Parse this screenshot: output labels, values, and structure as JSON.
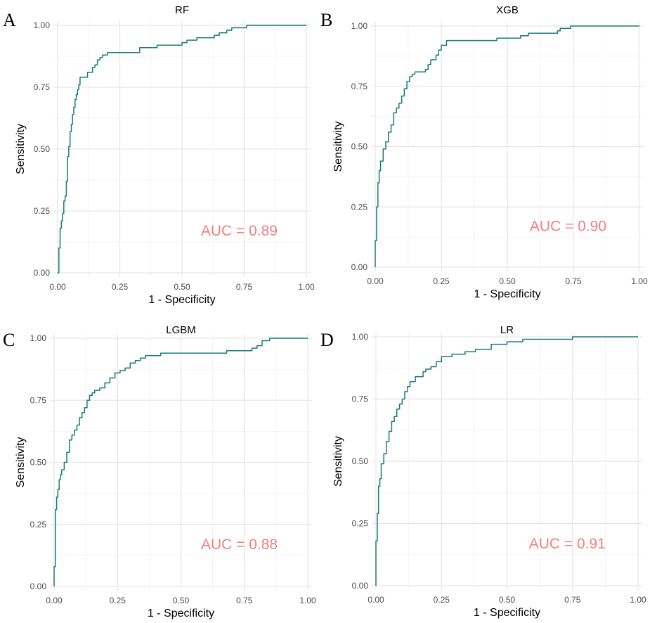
{
  "style": {
    "line_color": "#1a7a7a",
    "annotation_color": "#f08080",
    "grid_color": "#e6e6e6",
    "tick_color": "#4d4d4d"
  },
  "chart_data": [
    {
      "type": "line",
      "panel_letter": "A",
      "title": "RF",
      "xlabel": "1 - Specificity",
      "ylabel": "Sensitivity",
      "xlim": [
        0,
        1
      ],
      "ylim": [
        0,
        1
      ],
      "x_ticks": [
        "0.00",
        "0.25",
        "0.50",
        "0.75",
        "1.00"
      ],
      "y_ticks": [
        "0.00",
        "0.25",
        "0.50",
        "0.75",
        "1.00"
      ],
      "annotation": "AUC = 0.89",
      "grid": true,
      "series": [
        {
          "x": [
            0.0,
            0.005,
            0.005,
            0.01,
            0.01,
            0.015,
            0.015,
            0.02,
            0.02,
            0.025,
            0.025,
            0.03,
            0.03,
            0.035,
            0.035,
            0.04,
            0.04,
            0.045,
            0.045,
            0.05,
            0.05,
            0.055,
            0.055,
            0.06,
            0.06,
            0.065,
            0.065,
            0.07,
            0.07,
            0.075,
            0.075,
            0.08,
            0.08,
            0.085,
            0.085,
            0.09,
            0.09,
            0.1,
            0.1,
            0.11,
            0.11,
            0.12,
            0.12,
            0.14,
            0.14,
            0.15,
            0.15,
            0.16,
            0.16,
            0.17,
            0.17,
            0.18,
            0.18,
            0.2,
            0.2,
            0.33,
            0.33,
            0.4,
            0.4,
            0.5,
            0.5,
            0.52,
            0.52,
            0.55,
            0.55,
            0.56,
            0.56,
            0.63,
            0.63,
            0.65,
            0.65,
            0.68,
            0.68,
            0.7,
            0.7,
            0.76,
            0.76,
            0.85,
            0.85,
            1.0
          ],
          "y": [
            0.0,
            0.0,
            0.1,
            0.1,
            0.18,
            0.18,
            0.21,
            0.21,
            0.24,
            0.24,
            0.29,
            0.29,
            0.31,
            0.31,
            0.37,
            0.37,
            0.47,
            0.47,
            0.51,
            0.51,
            0.57,
            0.57,
            0.6,
            0.6,
            0.64,
            0.64,
            0.67,
            0.67,
            0.7,
            0.7,
            0.72,
            0.72,
            0.74,
            0.74,
            0.76,
            0.76,
            0.79,
            0.79,
            0.79,
            0.79,
            0.79,
            0.79,
            0.81,
            0.81,
            0.83,
            0.83,
            0.84,
            0.84,
            0.86,
            0.86,
            0.87,
            0.87,
            0.88,
            0.88,
            0.89,
            0.89,
            0.91,
            0.91,
            0.92,
            0.92,
            0.93,
            0.93,
            0.94,
            0.94,
            0.94,
            0.94,
            0.95,
            0.95,
            0.96,
            0.96,
            0.97,
            0.97,
            0.98,
            0.98,
            0.99,
            0.99,
            1.0,
            1.0,
            1.0,
            1.0
          ]
        }
      ]
    },
    {
      "type": "line",
      "panel_letter": "B",
      "title": "XGB",
      "xlabel": "1 - Specificity",
      "ylabel": "Sensitivity",
      "xlim": [
        0,
        1
      ],
      "ylim": [
        0,
        1
      ],
      "x_ticks": [
        "0.00",
        "0.25",
        "0.50",
        "0.75",
        "1.00"
      ],
      "y_ticks": [
        "0.00",
        "0.25",
        "0.50",
        "0.75",
        "1.00"
      ],
      "annotation": "AUC = 0.90",
      "grid": true,
      "series": [
        {
          "x": [
            0.0,
            0.0,
            0.005,
            0.005,
            0.01,
            0.01,
            0.015,
            0.015,
            0.02,
            0.02,
            0.03,
            0.03,
            0.04,
            0.04,
            0.05,
            0.05,
            0.06,
            0.06,
            0.07,
            0.07,
            0.08,
            0.08,
            0.09,
            0.09,
            0.1,
            0.1,
            0.11,
            0.11,
            0.12,
            0.12,
            0.13,
            0.13,
            0.14,
            0.14,
            0.15,
            0.15,
            0.19,
            0.19,
            0.2,
            0.2,
            0.21,
            0.21,
            0.23,
            0.23,
            0.24,
            0.24,
            0.25,
            0.25,
            0.27,
            0.27,
            0.46,
            0.46,
            0.55,
            0.55,
            0.58,
            0.58,
            0.69,
            0.69,
            0.7,
            0.7,
            0.74,
            0.74,
            1.0
          ],
          "y": [
            0.0,
            0.11,
            0.11,
            0.25,
            0.25,
            0.35,
            0.35,
            0.4,
            0.4,
            0.44,
            0.44,
            0.49,
            0.49,
            0.52,
            0.52,
            0.56,
            0.56,
            0.59,
            0.59,
            0.64,
            0.64,
            0.66,
            0.66,
            0.68,
            0.68,
            0.71,
            0.71,
            0.74,
            0.74,
            0.77,
            0.77,
            0.79,
            0.79,
            0.8,
            0.8,
            0.81,
            0.81,
            0.82,
            0.82,
            0.84,
            0.84,
            0.86,
            0.86,
            0.88,
            0.88,
            0.9,
            0.9,
            0.92,
            0.92,
            0.94,
            0.94,
            0.95,
            0.95,
            0.96,
            0.96,
            0.97,
            0.97,
            0.98,
            0.98,
            0.99,
            0.99,
            1.0,
            1.0
          ]
        }
      ]
    },
    {
      "type": "line",
      "panel_letter": "C",
      "title": "LGBM",
      "xlabel": "1 - Specificity",
      "ylabel": "Sensitivity",
      "xlim": [
        0,
        1
      ],
      "ylim": [
        0,
        1
      ],
      "x_ticks": [
        "0.00",
        "0.25",
        "0.50",
        "0.75",
        "1.00"
      ],
      "y_ticks": [
        "0.00",
        "0.25",
        "0.50",
        "0.75",
        "1.00"
      ],
      "annotation": "AUC = 0.88",
      "grid": true,
      "series": [
        {
          "x": [
            0.0,
            0.0,
            0.005,
            0.005,
            0.01,
            0.01,
            0.015,
            0.015,
            0.02,
            0.02,
            0.025,
            0.025,
            0.03,
            0.03,
            0.04,
            0.04,
            0.05,
            0.05,
            0.06,
            0.06,
            0.07,
            0.07,
            0.08,
            0.08,
            0.09,
            0.09,
            0.1,
            0.1,
            0.11,
            0.11,
            0.12,
            0.12,
            0.13,
            0.13,
            0.14,
            0.14,
            0.15,
            0.15,
            0.16,
            0.16,
            0.18,
            0.18,
            0.2,
            0.2,
            0.22,
            0.22,
            0.24,
            0.24,
            0.26,
            0.26,
            0.28,
            0.28,
            0.3,
            0.3,
            0.32,
            0.32,
            0.34,
            0.34,
            0.36,
            0.36,
            0.42,
            0.42,
            0.68,
            0.68,
            0.78,
            0.78,
            0.8,
            0.8,
            0.82,
            0.82,
            0.85,
            0.85,
            0.86,
            0.86,
            1.0
          ],
          "y": [
            0.0,
            0.08,
            0.08,
            0.31,
            0.31,
            0.36,
            0.36,
            0.39,
            0.39,
            0.43,
            0.43,
            0.45,
            0.45,
            0.47,
            0.47,
            0.5,
            0.5,
            0.54,
            0.54,
            0.59,
            0.59,
            0.61,
            0.61,
            0.63,
            0.63,
            0.65,
            0.65,
            0.68,
            0.68,
            0.7,
            0.7,
            0.72,
            0.72,
            0.75,
            0.75,
            0.77,
            0.77,
            0.78,
            0.78,
            0.79,
            0.79,
            0.8,
            0.8,
            0.82,
            0.82,
            0.84,
            0.84,
            0.86,
            0.86,
            0.87,
            0.87,
            0.88,
            0.88,
            0.9,
            0.9,
            0.91,
            0.91,
            0.92,
            0.92,
            0.93,
            0.93,
            0.94,
            0.94,
            0.95,
            0.95,
            0.96,
            0.96,
            0.97,
            0.97,
            0.99,
            0.99,
            1.0,
            1.0,
            1.0,
            1.0
          ]
        }
      ]
    },
    {
      "type": "line",
      "panel_letter": "D",
      "title": "LR",
      "xlabel": "1 - Specificity",
      "ylabel": "Sensitivity",
      "xlim": [
        0,
        1
      ],
      "ylim": [
        0,
        1
      ],
      "x_ticks": [
        "0.00",
        "0.25",
        "0.50",
        "0.75",
        "1.00"
      ],
      "y_ticks": [
        "0.00",
        "0.25",
        "0.50",
        "0.75",
        "1.00"
      ],
      "annotation": "AUC = 0.91",
      "grid": true,
      "series": [
        {
          "x": [
            0.0,
            0.0,
            0.005,
            0.005,
            0.01,
            0.01,
            0.015,
            0.015,
            0.02,
            0.02,
            0.03,
            0.03,
            0.04,
            0.04,
            0.05,
            0.05,
            0.06,
            0.06,
            0.07,
            0.07,
            0.08,
            0.08,
            0.09,
            0.09,
            0.1,
            0.1,
            0.11,
            0.11,
            0.12,
            0.12,
            0.13,
            0.13,
            0.15,
            0.15,
            0.18,
            0.18,
            0.19,
            0.19,
            0.21,
            0.21,
            0.23,
            0.23,
            0.25,
            0.25,
            0.29,
            0.29,
            0.34,
            0.34,
            0.38,
            0.38,
            0.44,
            0.44,
            0.5,
            0.5,
            0.56,
            0.56,
            0.75,
            0.75,
            1.0
          ],
          "y": [
            0.0,
            0.18,
            0.18,
            0.29,
            0.29,
            0.4,
            0.4,
            0.43,
            0.43,
            0.49,
            0.49,
            0.53,
            0.53,
            0.58,
            0.58,
            0.62,
            0.62,
            0.66,
            0.66,
            0.68,
            0.68,
            0.71,
            0.71,
            0.73,
            0.73,
            0.75,
            0.75,
            0.78,
            0.78,
            0.8,
            0.8,
            0.82,
            0.82,
            0.84,
            0.84,
            0.86,
            0.86,
            0.87,
            0.87,
            0.88,
            0.88,
            0.9,
            0.9,
            0.92,
            0.92,
            0.93,
            0.93,
            0.94,
            0.94,
            0.95,
            0.95,
            0.97,
            0.97,
            0.98,
            0.98,
            0.99,
            0.99,
            1.0,
            1.0
          ]
        }
      ]
    }
  ]
}
